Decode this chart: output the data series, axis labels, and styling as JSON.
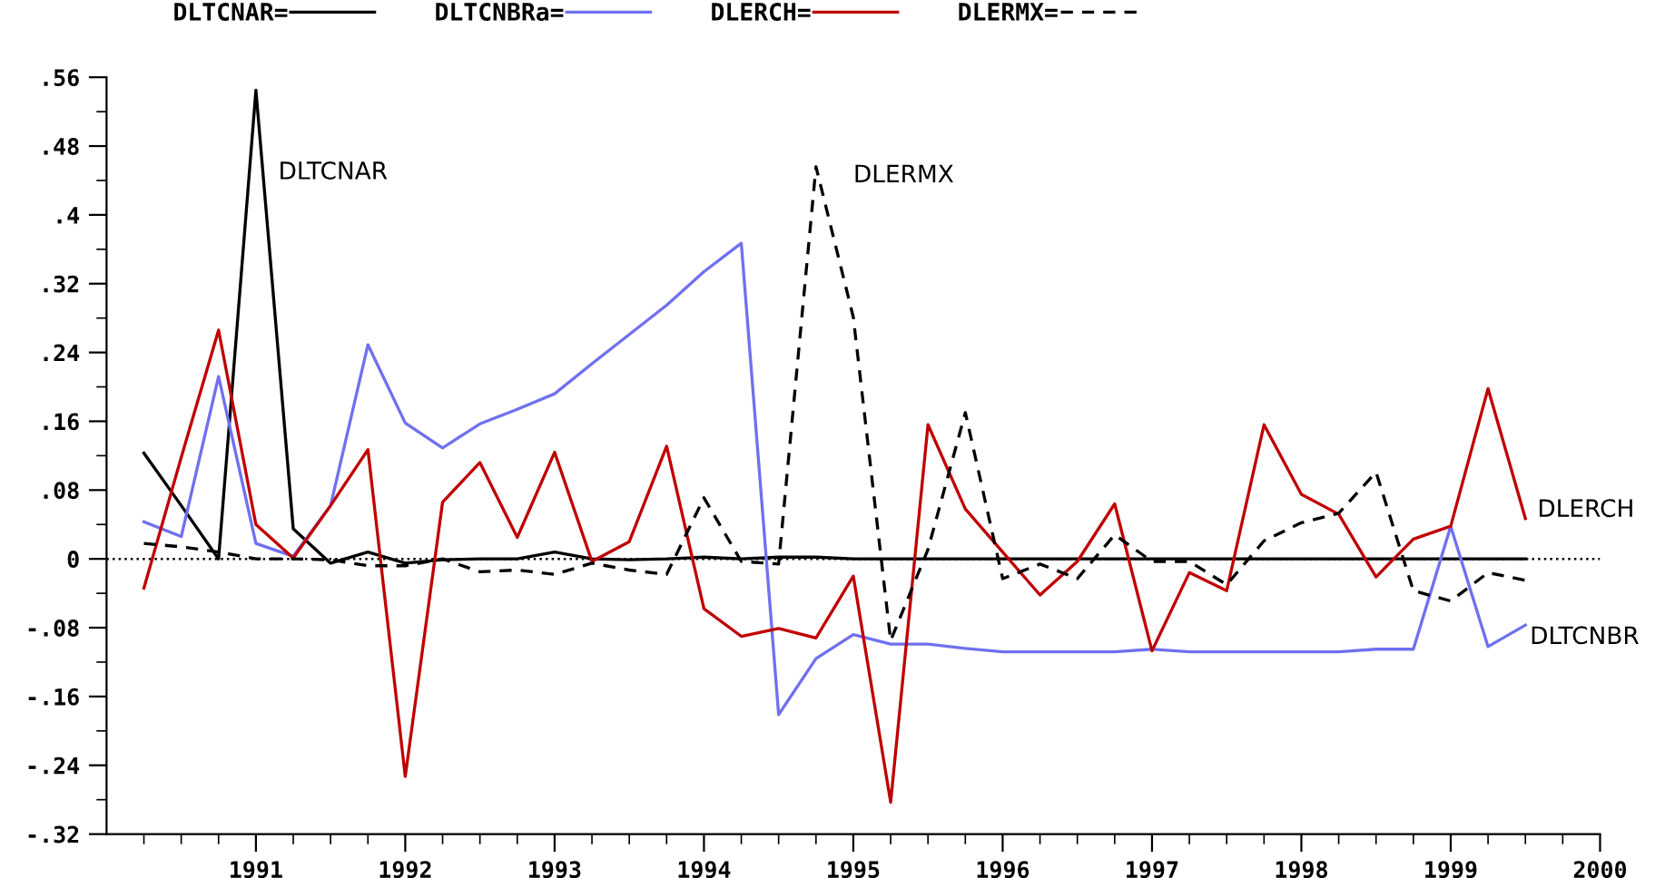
{
  "chart_data": {
    "type": "line",
    "x": [
      1990.25,
      1990.5,
      1990.75,
      1991.0,
      1991.25,
      1991.5,
      1991.75,
      1992.0,
      1992.25,
      1992.5,
      1992.75,
      1993.0,
      1993.25,
      1993.5,
      1993.75,
      1994.0,
      1994.25,
      1994.5,
      1994.75,
      1995.0,
      1995.25,
      1995.5,
      1995.75,
      1996.0,
      1996.25,
      1996.5,
      1996.75,
      1997.0,
      1997.25,
      1997.5,
      1997.75,
      1998.0,
      1998.25,
      1998.5,
      1998.75,
      1999.0,
      1999.25,
      1999.5
    ],
    "series": [
      {
        "name": "DLTCNAR=",
        "color": "#000000",
        "line_style": "solid",
        "values": [
          0.123,
          0.062,
          0.0,
          0.545,
          0.035,
          -0.005,
          0.008,
          -0.005,
          -0.001,
          0,
          0,
          0.008,
          0,
          -0.001,
          0,
          0.002,
          0,
          0.002,
          0.002,
          0,
          0,
          0,
          0,
          0,
          0,
          0,
          0,
          0,
          0,
          0,
          0,
          0,
          0,
          0,
          0,
          0,
          0,
          0
        ]
      },
      {
        "name": "DLTCNBRa=",
        "color": "#7070f0",
        "line_style": "solid",
        "values": [
          0.043,
          0.026,
          0.212,
          0.018,
          0.003,
          0.062,
          0.249,
          0.158,
          0.129,
          0.157,
          0.174,
          0.192,
          0.227,
          0.261,
          0.295,
          0.334,
          0.367,
          -0.181,
          -0.116,
          -0.088,
          -0.099,
          -0.099,
          -0.104,
          -0.108,
          -0.108,
          -0.108,
          -0.108,
          -0.105,
          -0.108,
          -0.108,
          -0.108,
          -0.108,
          -0.108,
          -0.105,
          -0.105,
          0.038,
          -0.102,
          -0.077
        ]
      },
      {
        "name": "DLERCH=",
        "color": "#c00000",
        "line_style": "solid",
        "values": [
          -0.034,
          0.118,
          0.266,
          0.04,
          0.001,
          0.062,
          0.127,
          -0.253,
          0.066,
          0.112,
          0.025,
          0.124,
          -0.003,
          0.02,
          0.131,
          -0.058,
          -0.09,
          -0.081,
          -0.092,
          -0.02,
          -0.283,
          0.156,
          0.058,
          0.008,
          -0.042,
          -0.003,
          0.064,
          -0.107,
          -0.016,
          -0.037,
          0.156,
          0.075,
          0.052,
          -0.021,
          0.023,
          0.038,
          0.198,
          0.047
        ]
      },
      {
        "name": "DLERMX=",
        "color": "#000000",
        "line_style": "dashed",
        "values": [
          0.018,
          0.014,
          0.008,
          0,
          0,
          -0.001,
          -0.008,
          -0.008,
          0,
          -0.015,
          -0.013,
          -0.018,
          -0.005,
          -0.013,
          -0.018,
          0.071,
          -0.003,
          -0.006,
          0.456,
          0.281,
          -0.095,
          0.011,
          0.17,
          -0.023,
          -0.006,
          -0.023,
          0.028,
          -0.003,
          -0.003,
          -0.03,
          0.021,
          0.042,
          0.053,
          0.101,
          -0.037,
          -0.049,
          -0.016,
          -0.025
        ]
      }
    ],
    "xlim": [
      1990,
      2000
    ],
    "xticks": [
      1991,
      1992,
      1993,
      1994,
      1995,
      1996,
      1997,
      1998,
      1999,
      2000
    ],
    "ylim": [
      -0.32,
      0.56
    ],
    "yticks": [
      {
        "value": 0.56,
        "label": ".56"
      },
      {
        "value": 0.48,
        "label": ".48"
      },
      {
        "value": 0.4,
        "label": ".4"
      },
      {
        "value": 0.32,
        "label": ".32"
      },
      {
        "value": 0.24,
        "label": ".24"
      },
      {
        "value": 0.16,
        "label": ".16"
      },
      {
        "value": 0.08,
        "label": ".08"
      },
      {
        "value": 0,
        "label": "0"
      },
      {
        "value": -0.08,
        "label": "-.08"
      },
      {
        "value": -0.16,
        "label": "-.16"
      },
      {
        "value": -0.24,
        "label": "-.24"
      },
      {
        "value": -0.32,
        "label": "-.32"
      }
    ],
    "ref_lines": [
      {
        "axis": "y",
        "value": 0,
        "color": "#000000",
        "line_style": "dotted"
      }
    ],
    "annotations": [
      "DLTCNAR",
      "DLERMX",
      "DLERCH",
      "DLTCNBR"
    ],
    "grid": false,
    "legend": "top",
    "marker": "none"
  }
}
